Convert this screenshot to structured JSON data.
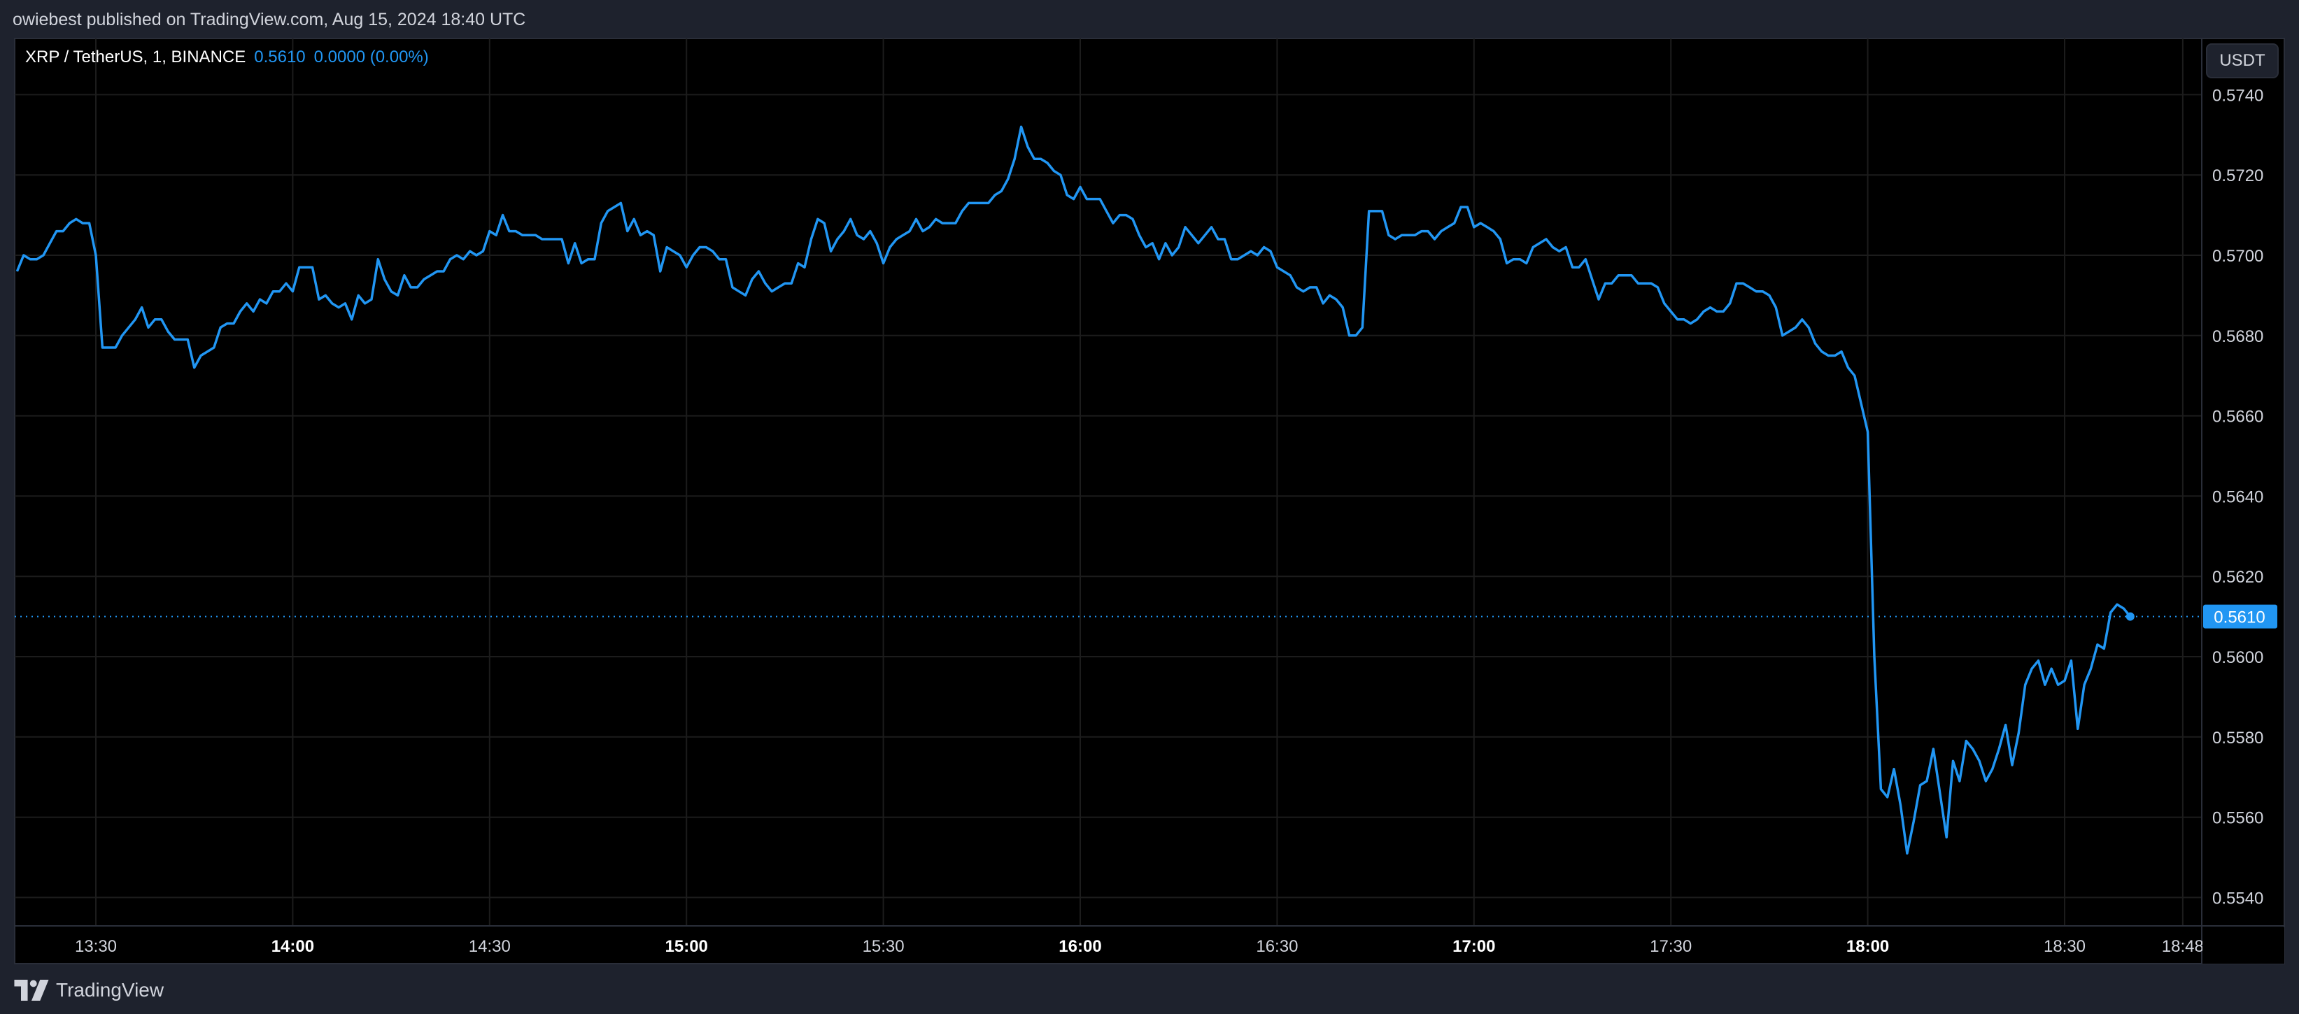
{
  "header": {
    "published": "owiebest published on TradingView.com, Aug 15, 2024 18:40 UTC"
  },
  "legend": {
    "symbol": "XRP / TetherUS, 1, BINANCE",
    "last_price": "0.5610",
    "change": "0.0000 (0.00%)"
  },
  "price_axis": {
    "currency_button": "USDT",
    "last_price_label": "0.5610"
  },
  "footer": {
    "brand": "TradingView",
    "logo_icon": "tradingview-logo-icon"
  },
  "colors": {
    "line": "#2196f3",
    "background": "#000000",
    "chrome": "#1e222d",
    "grid": "#1c1c1c",
    "text": "#d1d4dc",
    "price_badge": "#2196f3"
  },
  "chart_data": {
    "type": "line",
    "title": "XRP / TetherUS, 1, BINANCE",
    "xlabel": "",
    "ylabel": "USDT",
    "interval": "1 minute",
    "start_time": "13:18",
    "end_time": "18:40",
    "ylim": [
      0.5533,
      0.575
    ],
    "grid": true,
    "legend_position": "top-left",
    "y_ticks": [
      "0.5740",
      "0.5720",
      "0.5700",
      "0.5680",
      "0.5660",
      "0.5640",
      "0.5620",
      "0.5600",
      "0.5580",
      "0.5560",
      "0.5540"
    ],
    "x_ticks": [
      {
        "label": "13:30",
        "bold": false
      },
      {
        "label": "14:00",
        "bold": true
      },
      {
        "label": "14:30",
        "bold": false
      },
      {
        "label": "15:00",
        "bold": true
      },
      {
        "label": "15:30",
        "bold": false
      },
      {
        "label": "16:00",
        "bold": true
      },
      {
        "label": "16:30",
        "bold": false
      },
      {
        "label": "17:00",
        "bold": true
      },
      {
        "label": "17:30",
        "bold": false
      },
      {
        "label": "18:00",
        "bold": true
      },
      {
        "label": "18:30",
        "bold": false
      },
      {
        "label": "18:48",
        "bold": false
      }
    ],
    "last_value": 0.561,
    "annotations": [
      "Last price line at 0.5610 (dotted)"
    ],
    "values": [
      0.5696,
      0.57,
      0.5699,
      0.5699,
      0.57,
      0.5703,
      0.5706,
      0.5706,
      0.5708,
      0.5709,
      0.5708,
      0.5708,
      0.57,
      0.5677,
      0.5677,
      0.5677,
      0.568,
      0.5682,
      0.5684,
      0.5687,
      0.5682,
      0.5684,
      0.5684,
      0.5681,
      0.5679,
      0.5679,
      0.5679,
      0.5672,
      0.5675,
      0.5676,
      0.5677,
      0.5682,
      0.5683,
      0.5683,
      0.5686,
      0.5688,
      0.5686,
      0.5689,
      0.5688,
      0.5691,
      0.5691,
      0.5693,
      0.5691,
      0.5697,
      0.5697,
      0.5697,
      0.5689,
      0.569,
      0.5688,
      0.5687,
      0.5688,
      0.5684,
      0.569,
      0.5688,
      0.5689,
      0.5699,
      0.5694,
      0.5691,
      0.569,
      0.5695,
      0.5692,
      0.5692,
      0.5694,
      0.5695,
      0.5696,
      0.5696,
      0.5699,
      0.57,
      0.5699,
      0.5701,
      0.57,
      0.5701,
      0.5706,
      0.5705,
      0.571,
      0.5706,
      0.5706,
      0.5705,
      0.5705,
      0.5705,
      0.5704,
      0.5704,
      0.5704,
      0.5704,
      0.5698,
      0.5703,
      0.5698,
      0.5699,
      0.5699,
      0.5708,
      0.5711,
      0.5712,
      0.5713,
      0.5706,
      0.5709,
      0.5705,
      0.5706,
      0.5705,
      0.5696,
      0.5702,
      0.5701,
      0.57,
      0.5697,
      0.57,
      0.5702,
      0.5702,
      0.5701,
      0.5699,
      0.5699,
      0.5692,
      0.5691,
      0.569,
      0.5694,
      0.5696,
      0.5693,
      0.5691,
      0.5692,
      0.5693,
      0.5693,
      0.5698,
      0.5697,
      0.5704,
      0.5709,
      0.5708,
      0.5701,
      0.5704,
      0.5706,
      0.5709,
      0.5705,
      0.5704,
      0.5706,
      0.5703,
      0.5698,
      0.5702,
      0.5704,
      0.5705,
      0.5706,
      0.5709,
      0.5706,
      0.5707,
      0.5709,
      0.5708,
      0.5708,
      0.5708,
      0.5711,
      0.5713,
      0.5713,
      0.5713,
      0.5713,
      0.5715,
      0.5716,
      0.5719,
      0.5724,
      0.5732,
      0.5727,
      0.5724,
      0.5724,
      0.5723,
      0.5721,
      0.572,
      0.5715,
      0.5714,
      0.5717,
      0.5714,
      0.5714,
      0.5714,
      0.5711,
      0.5708,
      0.571,
      0.571,
      0.5709,
      0.5705,
      0.5702,
      0.5703,
      0.5699,
      0.5703,
      0.57,
      0.5702,
      0.5707,
      0.5705,
      0.5703,
      0.5705,
      0.5707,
      0.5704,
      0.5704,
      0.5699,
      0.5699,
      0.57,
      0.5701,
      0.57,
      0.5702,
      0.5701,
      0.5697,
      0.5696,
      0.5695,
      0.5692,
      0.5691,
      0.5692,
      0.5692,
      0.5688,
      0.569,
      0.5689,
      0.5687,
      0.568,
      0.568,
      0.5682,
      0.5711,
      0.5711,
      0.5711,
      0.5705,
      0.5704,
      0.5705,
      0.5705,
      0.5705,
      0.5706,
      0.5706,
      0.5704,
      0.5706,
      0.5707,
      0.5708,
      0.5712,
      0.5712,
      0.5707,
      0.5708,
      0.5707,
      0.5706,
      0.5704,
      0.5698,
      0.5699,
      0.5699,
      0.5698,
      0.5702,
      0.5703,
      0.5704,
      0.5702,
      0.5701,
      0.5702,
      0.5697,
      0.5697,
      0.5699,
      0.5694,
      0.5689,
      0.5693,
      0.5693,
      0.5695,
      0.5695,
      0.5695,
      0.5693,
      0.5693,
      0.5693,
      0.5692,
      0.5688,
      0.5686,
      0.5684,
      0.5684,
      0.5683,
      0.5684,
      0.5686,
      0.5687,
      0.5686,
      0.5686,
      0.5688,
      0.5693,
      0.5693,
      0.5692,
      0.5691,
      0.5691,
      0.569,
      0.5687,
      0.568,
      0.5681,
      0.5682,
      0.5684,
      0.5682,
      0.5678,
      0.5676,
      0.5675,
      0.5675,
      0.5676,
      0.5672,
      0.567,
      0.5663,
      0.5656,
      0.56,
      0.5567,
      0.5565,
      0.5572,
      0.5563,
      0.5551,
      0.5559,
      0.5568,
      0.5569,
      0.5577,
      0.5566,
      0.5555,
      0.5574,
      0.5569,
      0.5579,
      0.5577,
      0.5574,
      0.5569,
      0.5572,
      0.5577,
      0.5583,
      0.5573,
      0.5581,
      0.5593,
      0.5597,
      0.5599,
      0.5593,
      0.5597,
      0.5593,
      0.5594,
      0.5599,
      0.5582,
      0.5593,
      0.5597,
      0.5603,
      0.5602,
      0.5611,
      0.5613,
      0.5612,
      0.561
    ]
  }
}
